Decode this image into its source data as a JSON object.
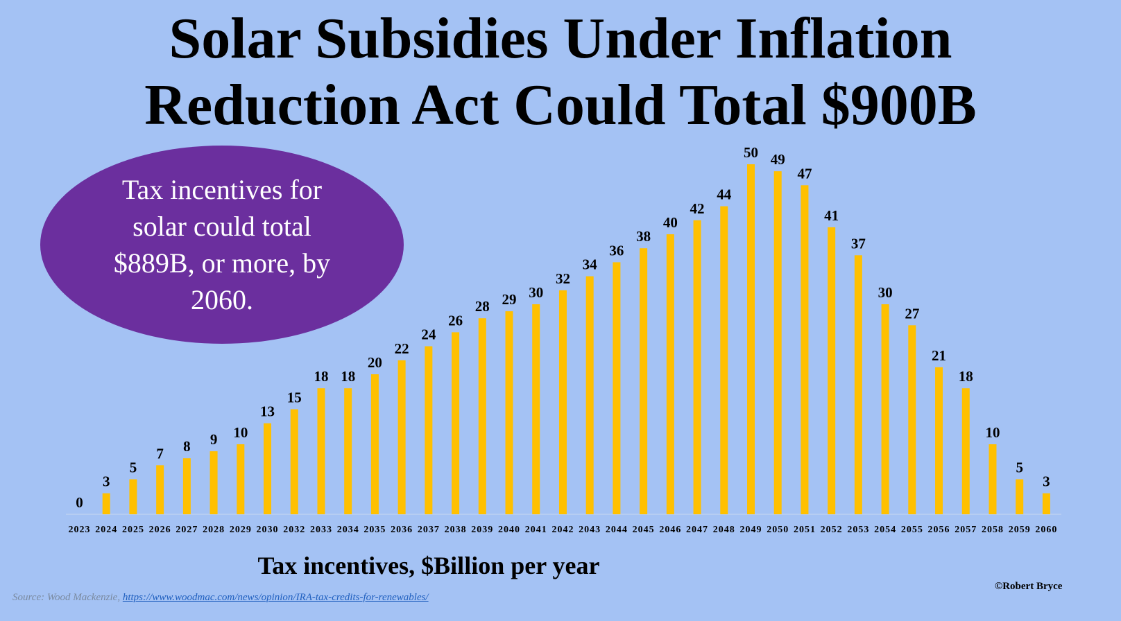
{
  "title": {
    "line1": "Solar Subsidies Under Inflation",
    "line2": "Reduction Act Could Total $900B"
  },
  "callout": "Tax incentives for solar could total $889B, or more, by 2060.",
  "credit": "©Robert Bryce",
  "source": {
    "prefix": "Source: Wood Mackenzie,",
    "link": "https://www.woodmac.com/news/opinion/IRA-tax-credits-for-renewables/"
  },
  "colors": {
    "background": "#a4c2f4",
    "bar": "#ffc000",
    "callout": "#6b2f9e"
  },
  "chart_data": {
    "type": "bar",
    "title": "Solar Subsidies Under Inflation Reduction Act Could Total $900B",
    "xlabel": "Tax incentives, $Billion per year",
    "ylabel": "",
    "ylim": [
      0,
      50
    ],
    "grid": false,
    "categories": [
      "2023",
      "2024",
      "2025",
      "2026",
      "2027",
      "2028",
      "2029",
      "2030",
      "2032",
      "2033",
      "2034",
      "2035",
      "2036",
      "2037",
      "2038",
      "2039",
      "2040",
      "2041",
      "2042",
      "2043",
      "2044",
      "2045",
      "2046",
      "2047",
      "2048",
      "2049",
      "2050",
      "2051",
      "2052",
      "2053",
      "2054",
      "2055",
      "2056",
      "2057",
      "2058",
      "2059",
      "2060"
    ],
    "values": [
      0,
      3,
      5,
      7,
      8,
      9,
      10,
      13,
      15,
      18,
      18,
      20,
      22,
      24,
      26,
      28,
      29,
      30,
      32,
      34,
      36,
      38,
      40,
      42,
      44,
      50,
      49,
      47,
      41,
      37,
      30,
      27,
      21,
      18,
      10,
      5,
      3
    ]
  }
}
